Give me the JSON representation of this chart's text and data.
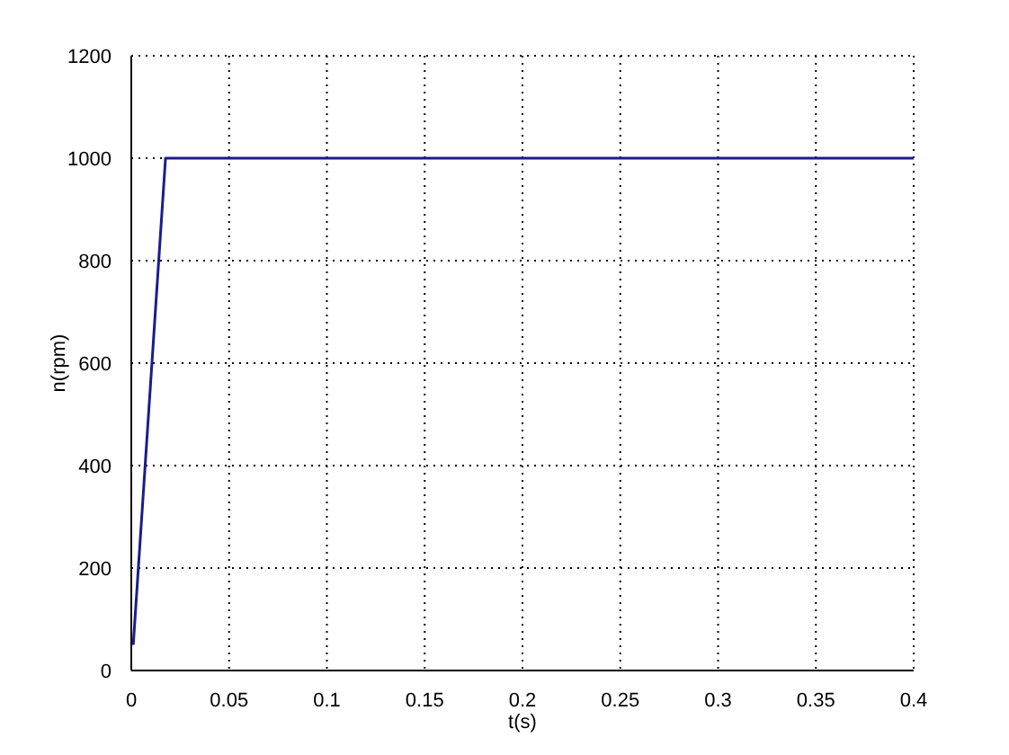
{
  "chart_data": {
    "type": "line",
    "xlabel": "t(s)",
    "ylabel": "n(rpm)",
    "x": [
      0.001,
      0.0175,
      0.4
    ],
    "series": [
      {
        "color": "#1c1c8c",
        "values": [
          50,
          1000,
          1000
        ]
      }
    ],
    "xlim": [
      0,
      0.4
    ],
    "xticks": [
      0,
      0.05,
      0.1,
      0.15,
      0.2,
      0.25,
      0.3,
      0.35,
      0.4
    ],
    "ylim": [
      0,
      1200
    ],
    "yticks": [
      0,
      200,
      400,
      600,
      800,
      1000,
      1200
    ],
    "grid": true
  }
}
